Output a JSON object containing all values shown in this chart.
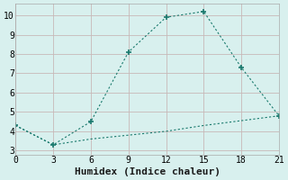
{
  "xlabel": "Humidex (Indice chaleur)",
  "line1_x": [
    0,
    3,
    6,
    9,
    12,
    15,
    18,
    21
  ],
  "line1_y": [
    4.3,
    3.3,
    4.5,
    8.1,
    9.9,
    10.2,
    7.3,
    4.8
  ],
  "line2_x": [
    0,
    3,
    6,
    9,
    12,
    15,
    21
  ],
  "line2_y": [
    4.3,
    3.3,
    3.6,
    3.8,
    4.0,
    4.3,
    4.8
  ],
  "line_color": "#1a7a6e",
  "background_color": "#d8f0ee",
  "grid_color": "#c8b8b8",
  "xlim": [
    0,
    21
  ],
  "ylim": [
    2.8,
    10.6
  ],
  "xticks": [
    0,
    3,
    6,
    9,
    12,
    15,
    18,
    21
  ],
  "yticks": [
    3,
    4,
    5,
    6,
    7,
    8,
    9,
    10
  ],
  "tick_fontsize": 7,
  "xlabel_fontsize": 8
}
